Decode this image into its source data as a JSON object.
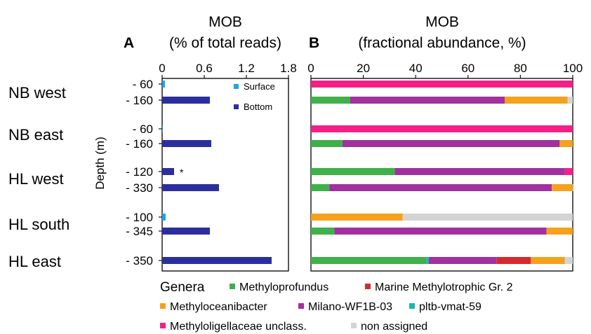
{
  "chart_data": [
    {
      "type": "bar",
      "panel_letter": "A",
      "title": "MOB",
      "subtitle": "(% of total reads)",
      "ylabel": "Depth (m)",
      "xlim": [
        0,
        1.8
      ],
      "xticks": [
        "0",
        "0.6",
        "1.2",
        "1.8"
      ],
      "site_labels": [
        "NB west",
        "NB east",
        "HL west",
        "HL south",
        "HL east"
      ],
      "categories": [
        "- 60",
        "- 160",
        "- 60",
        "- 160",
        "- 120",
        "- 330",
        "- 100",
        "- 345",
        "- 350"
      ],
      "series": [
        {
          "name": "Surface",
          "color": "#1aa7e0",
          "values": [
            0.04,
            null,
            0.01,
            null,
            null,
            null,
            0.05,
            null,
            null
          ]
        },
        {
          "name": "Bottom",
          "color": "#2b2f9e",
          "values": [
            null,
            0.68,
            null,
            0.7,
            0.17,
            0.81,
            null,
            0.68,
            1.56
          ]
        }
      ],
      "annotation": "*"
    },
    {
      "type": "bar",
      "stacked": true,
      "orientation": "horizontal",
      "panel_letter": "B",
      "title": "MOB",
      "subtitle": "(fractional abundance, %)",
      "xlim": [
        0,
        100
      ],
      "xticks": [
        "0",
        "20",
        "40",
        "60",
        "80",
        "100"
      ],
      "legend_title": "Genera",
      "legend_position": "bottom",
      "series": [
        {
          "name": "Methyloprofundus",
          "color": "#3fb04a"
        },
        {
          "name": "Marine Methylotrophic Gr. 2",
          "color": "#d62a2f"
        },
        {
          "name": "Methyloceanibacter",
          "color": "#f5a11b"
        },
        {
          "name": "Milano-WF1B-03",
          "color": "#a0319e"
        },
        {
          "name": "pltb-vmat-59",
          "color": "#1fb5b0"
        },
        {
          "name": "Methyloligellaceae unclass.",
          "color": "#f51f86"
        },
        {
          "name": "non assigned",
          "color": "#d4d4d4"
        }
      ],
      "rows": [
        {
          "segments": [
            {
              "series": "Methyloligellaceae unclass.",
              "value": 100
            }
          ]
        },
        {
          "segments": [
            {
              "series": "Methyloprofundus",
              "value": 15
            },
            {
              "series": "Milano-WF1B-03",
              "value": 59
            },
            {
              "series": "Methyloceanibacter",
              "value": 24
            },
            {
              "series": "non assigned",
              "value": 2
            }
          ]
        },
        {
          "segments": [
            {
              "series": "Methyloligellaceae unclass.",
              "value": 100
            }
          ]
        },
        {
          "segments": [
            {
              "series": "Methyloprofundus",
              "value": 12
            },
            {
              "series": "Milano-WF1B-03",
              "value": 83
            },
            {
              "series": "Methyloceanibacter",
              "value": 5
            }
          ]
        },
        {
          "segments": [
            {
              "series": "Methyloprofundus",
              "value": 32
            },
            {
              "series": "Milano-WF1B-03",
              "value": 65
            },
            {
              "series": "Methyloligellaceae unclass.",
              "value": 3
            }
          ]
        },
        {
          "segments": [
            {
              "series": "Methyloprofundus",
              "value": 7
            },
            {
              "series": "Milano-WF1B-03",
              "value": 85
            },
            {
              "series": "Methyloceanibacter",
              "value": 8
            },
            {
              "series": "non assigned",
              "value": 0.5
            }
          ]
        },
        {
          "segments": [
            {
              "series": "Methyloceanibacter",
              "value": 35
            },
            {
              "series": "non assigned",
              "value": 65
            }
          ]
        },
        {
          "segments": [
            {
              "series": "Methyloprofundus",
              "value": 9
            },
            {
              "series": "Milano-WF1B-03",
              "value": 81
            },
            {
              "series": "Methyloceanibacter",
              "value": 10
            }
          ]
        },
        {
          "segments": [
            {
              "series": "Methyloprofundus",
              "value": 44
            },
            {
              "series": "pltb-vmat-59",
              "value": 1
            },
            {
              "series": "Milano-WF1B-03",
              "value": 26
            },
            {
              "series": "Marine Methylotrophic Gr. 2",
              "value": 13
            },
            {
              "series": "Methyloceanibacter",
              "value": 13
            },
            {
              "series": "non assigned",
              "value": 3
            }
          ]
        }
      ]
    }
  ]
}
